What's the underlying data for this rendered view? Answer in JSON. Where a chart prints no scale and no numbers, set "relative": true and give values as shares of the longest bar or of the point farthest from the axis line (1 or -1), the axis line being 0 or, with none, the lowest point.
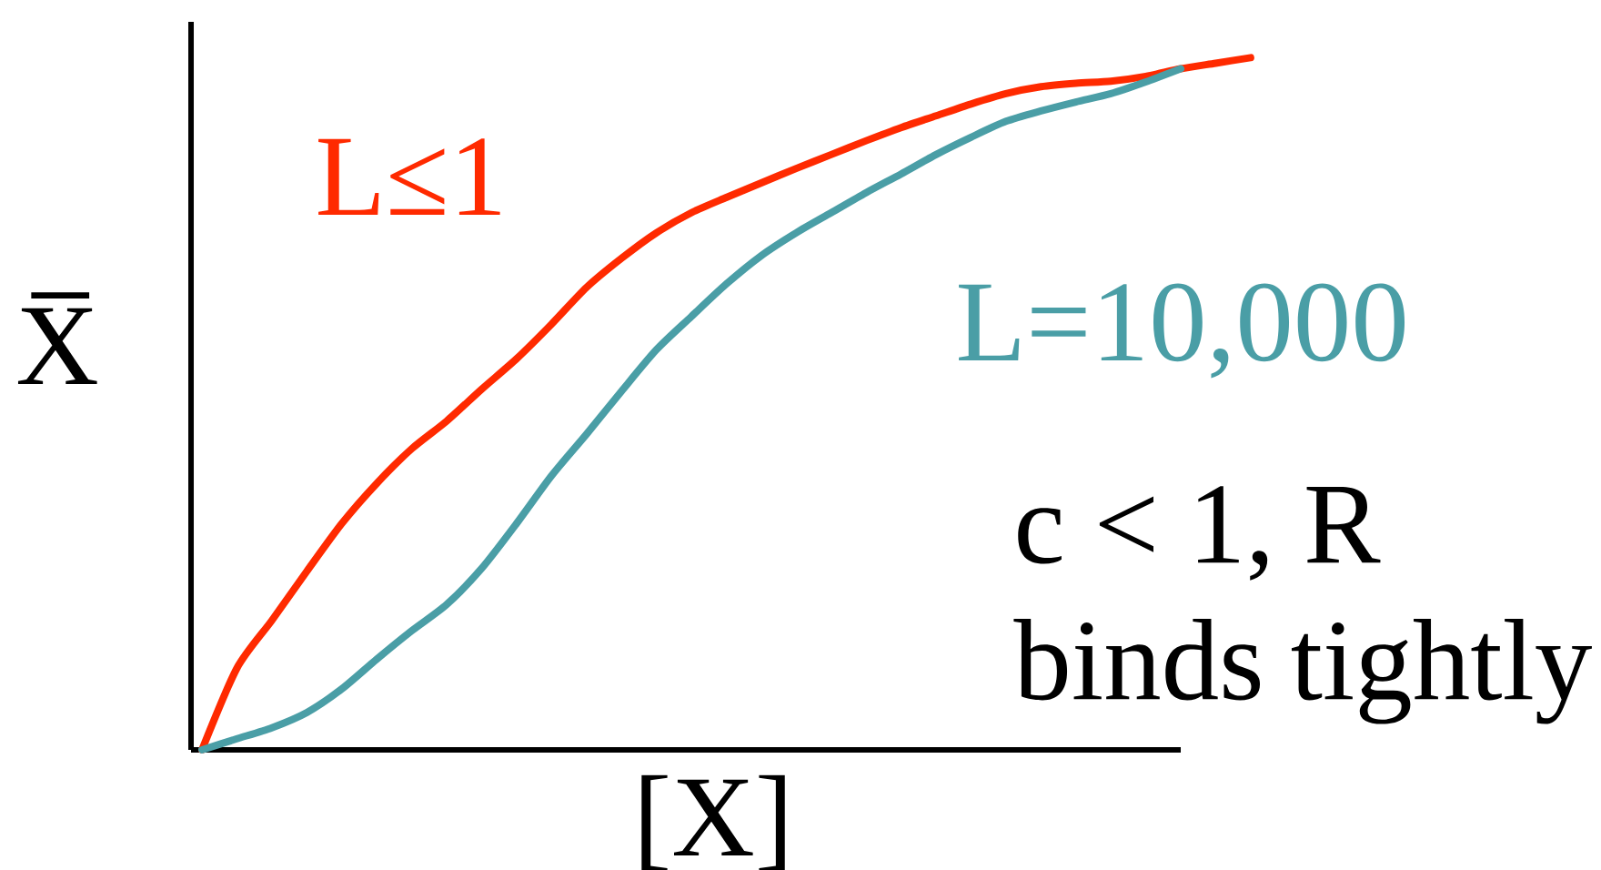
{
  "chart_data": {
    "type": "line",
    "relative": true,
    "xlabel": "[X]",
    "ylabel": "X̅",
    "categories": [
      null,
      null,
      null,
      null,
      null,
      null,
      null,
      null,
      null,
      null,
      null,
      null,
      null,
      null,
      null,
      null,
      null,
      null,
      null,
      null,
      null,
      null,
      null,
      null,
      null,
      null,
      null,
      null,
      null,
      null,
      null
    ],
    "series": [
      {
        "name": "L≤1",
        "color": "#ff2a00",
        "values": [
          0,
          0.118,
          0.187,
          0.258,
          0.327,
          0.385,
          0.435,
          0.475,
          0.521,
          0.565,
          0.615,
          0.668,
          0.71,
          0.747,
          0.776,
          0.798,
          0.819,
          0.84,
          0.86,
          0.88,
          0.899,
          0.916,
          0.933,
          0.948,
          0.958,
          0.963,
          0.966,
          0.973,
          0.984,
          0.992,
          1.0
        ]
      },
      {
        "name": "L=10,000",
        "color": "#4a9ea6",
        "values": [
          0,
          0.016,
          0.032,
          0.054,
          0.088,
          0.131,
          0.172,
          0.21,
          0.262,
          0.327,
          0.396,
          0.456,
          0.518,
          0.578,
          0.626,
          0.673,
          0.714,
          0.747,
          0.776,
          0.805,
          0.832,
          0.86,
          0.885,
          0.908,
          0.923,
          0.936,
          0.948,
          0.965,
          0.984,
          null,
          null
        ]
      }
    ],
    "annotations": [
      "c < 1, R binds tightly"
    ]
  }
}
